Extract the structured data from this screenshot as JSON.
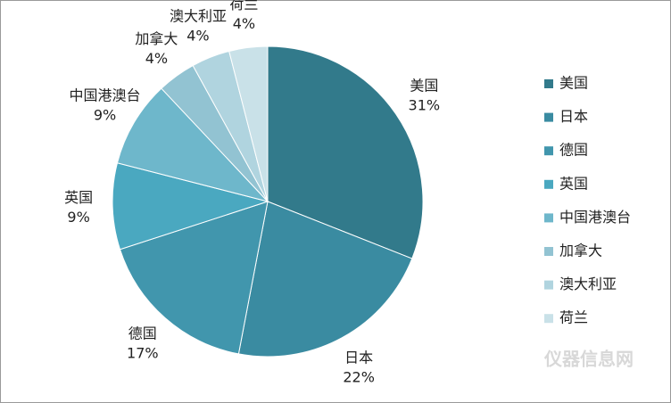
{
  "chart_data": {
    "type": "pie",
    "categories": [
      "美国",
      "日本",
      "德国",
      "英国",
      "中国港澳台",
      "加拿大",
      "澳大利亚",
      "荷兰"
    ],
    "values": [
      31,
      22,
      17,
      9,
      9,
      4,
      4,
      4
    ],
    "value_labels": [
      "31%",
      "22%",
      "17%",
      "9%",
      "9%",
      "4%",
      "4%",
      "4%"
    ],
    "colors": [
      "#327a8b",
      "#3a8ba1",
      "#4196ad",
      "#4aa8c0",
      "#6eb7cb",
      "#92c3d2",
      "#b0d4df",
      "#c9e1e8"
    ],
    "legend": "right"
  },
  "watermark": "仪器信息网"
}
